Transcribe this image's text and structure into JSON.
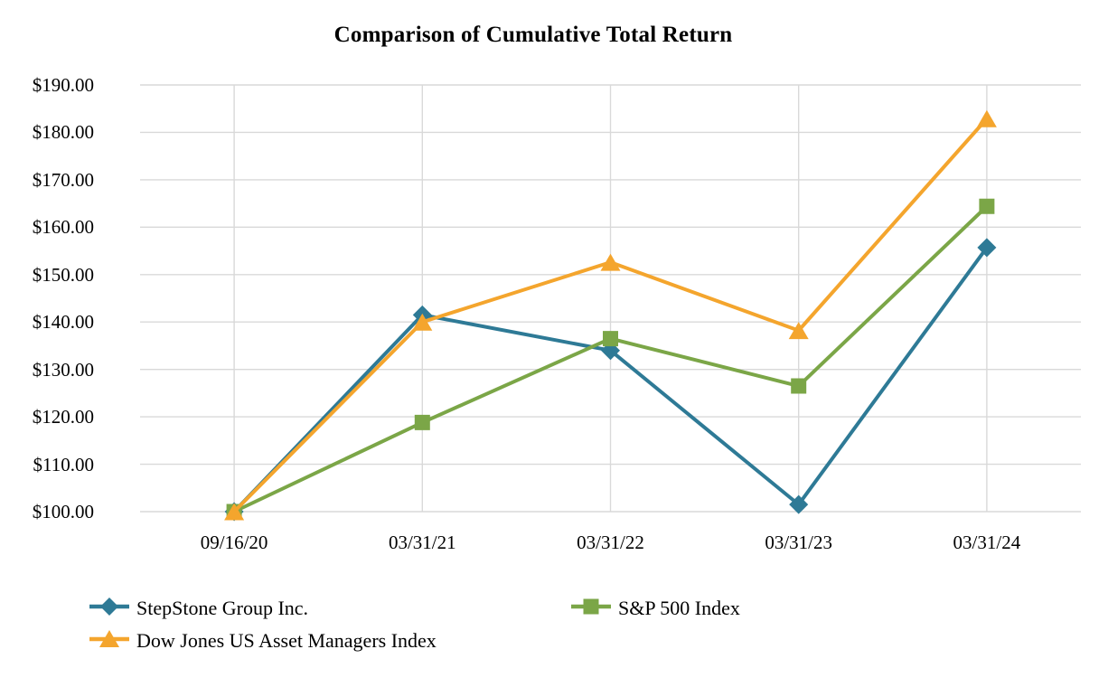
{
  "chart_data": {
    "type": "line",
    "title": "Comparison of Cumulative Total Return",
    "categories": [
      "09/16/20",
      "03/31/21",
      "03/31/22",
      "03/31/23",
      "03/31/24"
    ],
    "series": [
      {
        "name": "StepStone Group Inc.",
        "marker": "diamond",
        "color": "#2E7A96",
        "values": [
          100.0,
          141.5,
          134.0,
          101.5,
          155.7
        ]
      },
      {
        "name": "S&P 500 Index",
        "marker": "square",
        "color": "#7BA647",
        "values": [
          100.0,
          118.8,
          136.5,
          126.5,
          164.4
        ]
      },
      {
        "name": "Dow Jones US Asset Managers Index",
        "marker": "triangle",
        "color": "#F4A52D",
        "values": [
          100.0,
          140.0,
          152.6,
          138.2,
          182.9
        ]
      }
    ],
    "y_axis": {
      "min": 100,
      "max": 190,
      "step": 10,
      "tick_labels": [
        "$100.00",
        "$110.00",
        "$120.00",
        "$130.00",
        "$140.00",
        "$150.00",
        "$160.00",
        "$170.00",
        "$180.00",
        "$190.00"
      ]
    },
    "x_axis": {
      "tick_labels": [
        "09/16/20",
        "03/31/21",
        "03/31/22",
        "03/31/23",
        "03/31/24"
      ]
    },
    "grid": true,
    "legend_position": "bottom",
    "colors": {
      "gridline": "#D9D9D9",
      "text": "#000000",
      "background": "#FFFFFF"
    }
  }
}
